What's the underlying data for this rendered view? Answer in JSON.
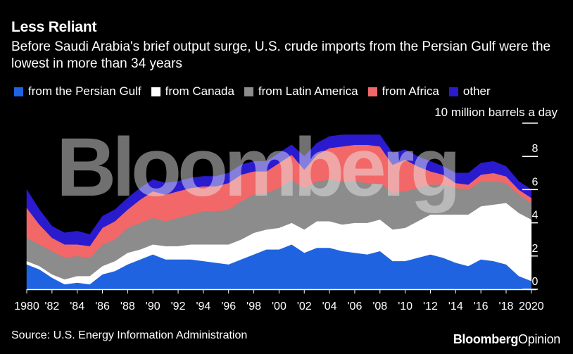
{
  "header": {
    "title": "Less Reliant",
    "subtitle": "Before Saudi Arabia's brief output surge, U.S. crude imports from the Persian Gulf were the lowest in more than 34 years"
  },
  "legend": [
    {
      "label": "from the Persian Gulf",
      "color": "#1f63e0"
    },
    {
      "label": "from Canada",
      "color": "#ffffff"
    },
    {
      "label": "from Latin America",
      "color": "#8c8c8c"
    },
    {
      "label": "from Africa",
      "color": "#f26868"
    },
    {
      "label": "other",
      "color": "#2b1bcf"
    }
  ],
  "axis": {
    "unit_label": "10 million barrels a day"
  },
  "footer": {
    "source": "Source: U.S. Energy Information Administration",
    "brand_part1": "Bloomberg",
    "brand_part2": "Opinion"
  },
  "watermark": "Bloomberg",
  "chart_data": {
    "type": "area",
    "stacked": true,
    "title": "Less Reliant",
    "ylabel": "10 million barrels a day",
    "ylim": [
      0,
      10
    ],
    "yticks": [
      0,
      2,
      4,
      6,
      8
    ],
    "xlim": [
      1980,
      2020.4
    ],
    "xticks": [
      1980,
      1982,
      1984,
      1986,
      1988,
      1990,
      1992,
      1994,
      1996,
      1998,
      2000,
      2002,
      2004,
      2006,
      2008,
      2010,
      2012,
      2014,
      2016,
      2018,
      2020
    ],
    "xtick_labels": [
      "1980",
      "'82",
      "'84",
      "'86",
      "'88",
      "'90",
      "'92",
      "'94",
      "'96",
      "'98",
      "'00",
      "'02",
      "'04",
      "'06",
      "'08",
      "'10",
      "'12",
      "'14",
      "'16",
      "'18",
      "2020"
    ],
    "grid": false,
    "legend_position": "top",
    "x": [
      1980,
      1981,
      1982,
      1983,
      1984,
      1985,
      1986,
      1987,
      1988,
      1989,
      1990,
      1991,
      1992,
      1993,
      1994,
      1995,
      1996,
      1997,
      1998,
      1999,
      2000,
      2001,
      2002,
      2003,
      2004,
      2005,
      2006,
      2007,
      2008,
      2009,
      2010,
      2011,
      2012,
      2013,
      2014,
      2015,
      2016,
      2017,
      2018,
      2019,
      2020
    ],
    "series": [
      {
        "name": "from the Persian Gulf",
        "values": [
          1.5,
          1.2,
          0.7,
          0.3,
          0.4,
          0.3,
          0.9,
          1.1,
          1.5,
          1.8,
          2.1,
          1.8,
          1.8,
          1.8,
          1.7,
          1.6,
          1.5,
          1.8,
          2.1,
          2.4,
          2.4,
          2.7,
          2.2,
          2.5,
          2.5,
          2.3,
          2.2,
          2.1,
          2.3,
          1.7,
          1.7,
          1.9,
          2.1,
          1.9,
          1.6,
          1.4,
          1.8,
          1.7,
          1.5,
          0.8,
          0.5
        ]
      },
      {
        "name": "from Canada",
        "values": [
          0.2,
          0.2,
          0.2,
          0.3,
          0.4,
          0.5,
          0.5,
          0.6,
          0.7,
          0.6,
          0.6,
          0.8,
          0.8,
          0.9,
          1.0,
          1.1,
          1.2,
          1.2,
          1.3,
          1.2,
          1.3,
          1.3,
          1.4,
          1.6,
          1.6,
          1.6,
          1.8,
          1.9,
          1.9,
          1.9,
          2.0,
          2.2,
          2.4,
          2.6,
          2.9,
          3.1,
          3.2,
          3.4,
          3.7,
          3.8,
          3.7
        ]
      },
      {
        "name": "from Latin America",
        "values": [
          1.4,
          1.3,
          1.4,
          1.3,
          1.2,
          1.1,
          1.3,
          1.3,
          1.5,
          1.6,
          1.6,
          1.5,
          1.7,
          1.8,
          2.0,
          2.0,
          2.1,
          2.3,
          2.3,
          2.2,
          2.4,
          2.6,
          2.5,
          2.4,
          2.5,
          2.6,
          2.5,
          2.4,
          2.2,
          2.2,
          2.2,
          2.0,
          1.8,
          1.8,
          1.6,
          1.5,
          1.5,
          1.4,
          1.2,
          1.1,
          1.0
        ]
      },
      {
        "name": "from Africa",
        "values": [
          1.8,
          1.2,
          0.8,
          0.8,
          0.7,
          0.7,
          1.0,
          1.1,
          1.1,
          1.4,
          1.6,
          1.6,
          1.6,
          1.6,
          1.5,
          1.5,
          1.6,
          1.6,
          1.4,
          1.3,
          1.5,
          1.5,
          1.1,
          1.6,
          1.9,
          2.1,
          2.2,
          2.3,
          2.2,
          1.7,
          1.9,
          1.3,
          0.8,
          0.6,
          0.3,
          0.3,
          0.4,
          0.5,
          0.4,
          0.3,
          0.3
        ]
      },
      {
        "name": "other",
        "values": [
          1.1,
          0.9,
          0.7,
          0.7,
          0.8,
          0.7,
          0.7,
          0.7,
          0.7,
          0.7,
          0.7,
          0.7,
          0.6,
          0.6,
          0.6,
          0.6,
          0.6,
          0.6,
          0.6,
          0.6,
          0.6,
          0.6,
          0.8,
          0.7,
          0.7,
          0.7,
          0.6,
          0.6,
          0.7,
          0.7,
          0.6,
          0.6,
          0.6,
          0.5,
          0.6,
          0.7,
          0.7,
          0.7,
          0.6,
          0.5,
          0.5
        ]
      }
    ]
  }
}
